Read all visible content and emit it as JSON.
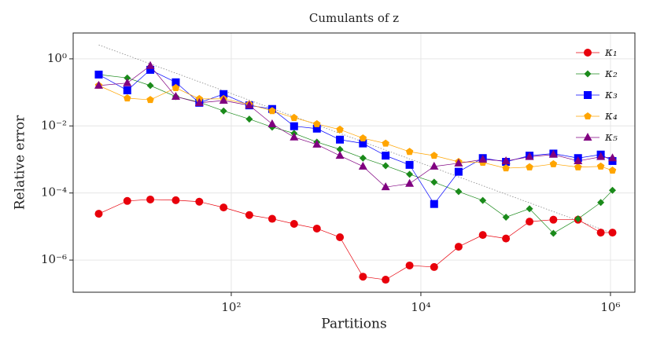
{
  "chart_data": {
    "type": "line",
    "title": "Cumulants of z",
    "x_label": "Partitions",
    "y_label": "Relative error",
    "log_x": true,
    "log_y": true,
    "grid": true,
    "legend": "top-right",
    "xlim": [
      2.15,
      1810000
    ],
    "ylim": [
      1.1e-07,
      5.9
    ],
    "xticks": [
      {
        "value": 100,
        "label": "10²"
      },
      {
        "value": 10000,
        "label": "10⁴"
      },
      {
        "value": 1000000,
        "label": "10⁶"
      }
    ],
    "yticks": [
      {
        "value": 1e-06,
        "label": "10⁻⁶"
      },
      {
        "value": 0.0001,
        "label": "10⁻⁴"
      },
      {
        "value": 0.01,
        "label": "10⁻²"
      },
      {
        "value": 1,
        "label": "10⁰"
      }
    ],
    "x": [
      4,
      8,
      14,
      26,
      46,
      83,
      155,
      270,
      460,
      800,
      1400,
      2450,
      4250,
      7600,
      13800,
      25000,
      45000,
      79000,
      140000,
      250000,
      455000,
      790000,
      1050000
    ],
    "series": [
      {
        "name": "κ₁",
        "color": "#e8000b",
        "marker": "circle",
        "values": [
          2.4e-05,
          5.8e-05,
          6.4e-05,
          6.1e-05,
          5.5e-05,
          3.7e-05,
          2.2e-05,
          1.7e-05,
          1.2e-05,
          8.7e-06,
          4.8e-06,
          3.2e-07,
          2.6e-07,
          6.9e-07,
          6.2e-07,
          2.5e-06,
          5.6e-06,
          4.4e-06,
          1.4e-05,
          1.6e-05,
          1.6e-05,
          6.6e-06,
          6.6e-06
        ]
      },
      {
        "name": "κ₂",
        "color": "#1a8a1a",
        "marker": "diamond",
        "values": [
          0.34,
          0.27,
          0.16,
          0.075,
          0.051,
          0.028,
          0.016,
          0.0092,
          0.006,
          0.0033,
          0.002,
          0.0011,
          0.00065,
          0.00036,
          0.00021,
          0.00011,
          6e-05,
          1.9e-05,
          3.4e-05,
          6.3e-06,
          1.7e-05,
          5.2e-05,
          0.00012
        ]
      },
      {
        "name": "κ₃",
        "color": "#0000ff",
        "marker": "square",
        "values": [
          0.34,
          0.115,
          0.47,
          0.2,
          0.049,
          0.089,
          0.041,
          0.032,
          0.0098,
          0.0083,
          0.0039,
          0.003,
          0.0013,
          0.00069,
          4.7e-05,
          0.00043,
          0.0011,
          0.00085,
          0.0013,
          0.0015,
          0.0011,
          0.0014,
          0.0009
        ]
      },
      {
        "name": "κ₄",
        "color": "#ffa500",
        "marker": "pentagon",
        "values": [
          0.16,
          0.067,
          0.06,
          0.136,
          0.064,
          0.064,
          0.044,
          0.028,
          0.0175,
          0.0114,
          0.0078,
          0.0043,
          0.003,
          0.0017,
          0.0013,
          0.00085,
          0.00081,
          0.00055,
          0.00059,
          0.00073,
          0.00059,
          0.00062,
          0.00047
        ]
      },
      {
        "name": "κ₅",
        "color": "#800080",
        "marker": "triangle",
        "values": [
          0.16,
          0.19,
          0.62,
          0.075,
          0.049,
          0.057,
          0.041,
          0.0114,
          0.0046,
          0.0028,
          0.0013,
          0.00062,
          0.00015,
          0.00019,
          0.00062,
          0.00077,
          0.001,
          0.0009,
          0.0012,
          0.0014,
          0.0009,
          0.0012,
          0.0011
        ]
      }
    ],
    "reference_line": {
      "x": [
        4,
        1050000
      ],
      "values": [
        2.6,
        6.3e-06
      ],
      "color": "#888888"
    }
  }
}
